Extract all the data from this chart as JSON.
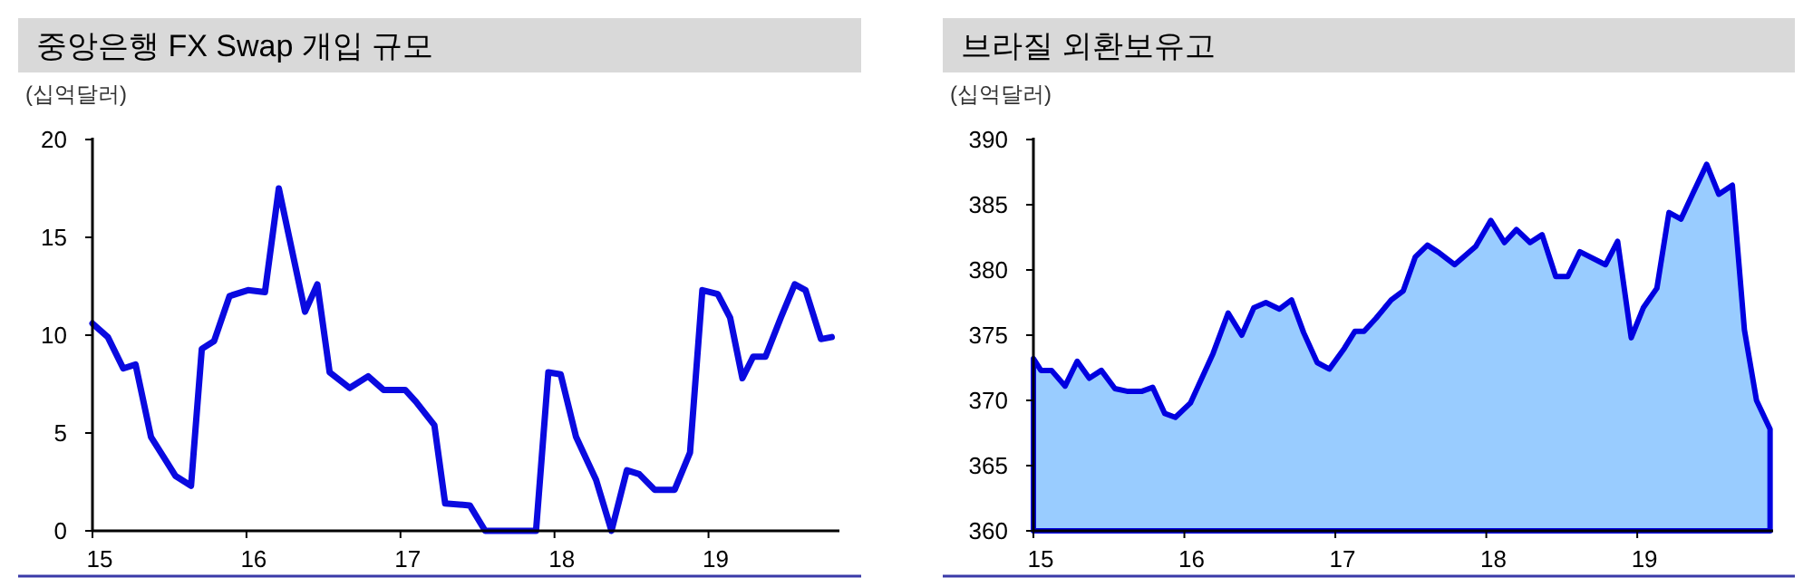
{
  "chart_data": [
    {
      "type": "line",
      "title": "중앙은행 FX Swap 개입 규모",
      "ylabel": "(십억달러)",
      "x": [
        15.0,
        15.1,
        15.2,
        15.28,
        15.38,
        15.54,
        15.64,
        15.71,
        15.79,
        15.89,
        16.01,
        16.12,
        16.21,
        16.38,
        16.46,
        16.54,
        16.67,
        16.79,
        16.89,
        17.03,
        17.1,
        17.22,
        17.29,
        17.45,
        17.55,
        17.8,
        17.88,
        17.96,
        18.04,
        18.14,
        18.27,
        18.37,
        18.47,
        18.55,
        18.65,
        18.78,
        18.88,
        18.96,
        19.06,
        19.14,
        19.22,
        19.29,
        19.37,
        19.47,
        19.56,
        19.63,
        19.73,
        19.8
      ],
      "series": [
        {
          "color": "#0a0ae0",
          "values": [
            10.6,
            9.9,
            8.3,
            8.5,
            4.8,
            2.8,
            2.3,
            9.3,
            9.7,
            12.0,
            12.3,
            12.2,
            17.5,
            11.2,
            12.6,
            8.1,
            7.3,
            7.9,
            7.2,
            7.2,
            6.6,
            5.4,
            1.4,
            1.3,
            0,
            0,
            0,
            8.1,
            8.0,
            4.8,
            2.6,
            0,
            3.1,
            2.9,
            2.1,
            2.1,
            4.0,
            12.3,
            12.1,
            10.9,
            7.8,
            8.9,
            8.9,
            10.9,
            12.6,
            12.3,
            9.8,
            9.9
          ]
        }
      ],
      "xlim": [
        15,
        19.85
      ],
      "ylim": [
        0,
        20
      ],
      "xticks": [
        15,
        16,
        17,
        18,
        19
      ],
      "yticks": [
        0,
        5,
        10,
        15,
        20
      ]
    },
    {
      "type": "area",
      "title": "브라질 외환보유고",
      "ylabel": "(십억달러)",
      "x": [
        15.0,
        15.05,
        15.12,
        15.21,
        15.29,
        15.37,
        15.45,
        15.54,
        15.62,
        15.72,
        15.79,
        15.87,
        15.94,
        16.04,
        16.19,
        16.29,
        16.38,
        16.46,
        16.54,
        16.63,
        16.71,
        16.79,
        16.88,
        16.96,
        17.06,
        17.13,
        17.19,
        17.27,
        17.37,
        17.45,
        17.53,
        17.61,
        17.69,
        17.79,
        17.93,
        18.03,
        18.12,
        18.2,
        18.29,
        18.37,
        18.46,
        18.54,
        18.62,
        18.79,
        18.87,
        18.96,
        19.04,
        19.13,
        19.21,
        19.29,
        19.37,
        19.46,
        19.54,
        19.63,
        19.71,
        19.79,
        19.88
      ],
      "series": [
        {
          "color": "#99ccff",
          "values": [
            373.2,
            372.3,
            372.3,
            371.1,
            373.0,
            371.7,
            372.3,
            370.9,
            370.7,
            370.7,
            371.0,
            369.0,
            368.7,
            369.8,
            373.6,
            376.7,
            375.0,
            377.1,
            377.5,
            377.0,
            377.7,
            375.2,
            372.9,
            372.4,
            374.0,
            375.3,
            375.3,
            376.3,
            377.7,
            378.4,
            381.0,
            381.9,
            381.3,
            380.4,
            381.8,
            383.8,
            382.1,
            383.1,
            382.1,
            382.7,
            379.5,
            379.5,
            381.4,
            380.4,
            382.2,
            374.8,
            377.1,
            378.6,
            384.4,
            383.9,
            385.9,
            388.1,
            385.8,
            386.5,
            375.4,
            370.0,
            367.8
          ]
        }
      ],
      "xlim": [
        15,
        19.9
      ],
      "ylim": [
        360,
        390
      ],
      "xticks": [
        15,
        16,
        17,
        18,
        19
      ],
      "yticks": [
        360,
        365,
        370,
        375,
        380,
        385,
        390
      ]
    }
  ]
}
